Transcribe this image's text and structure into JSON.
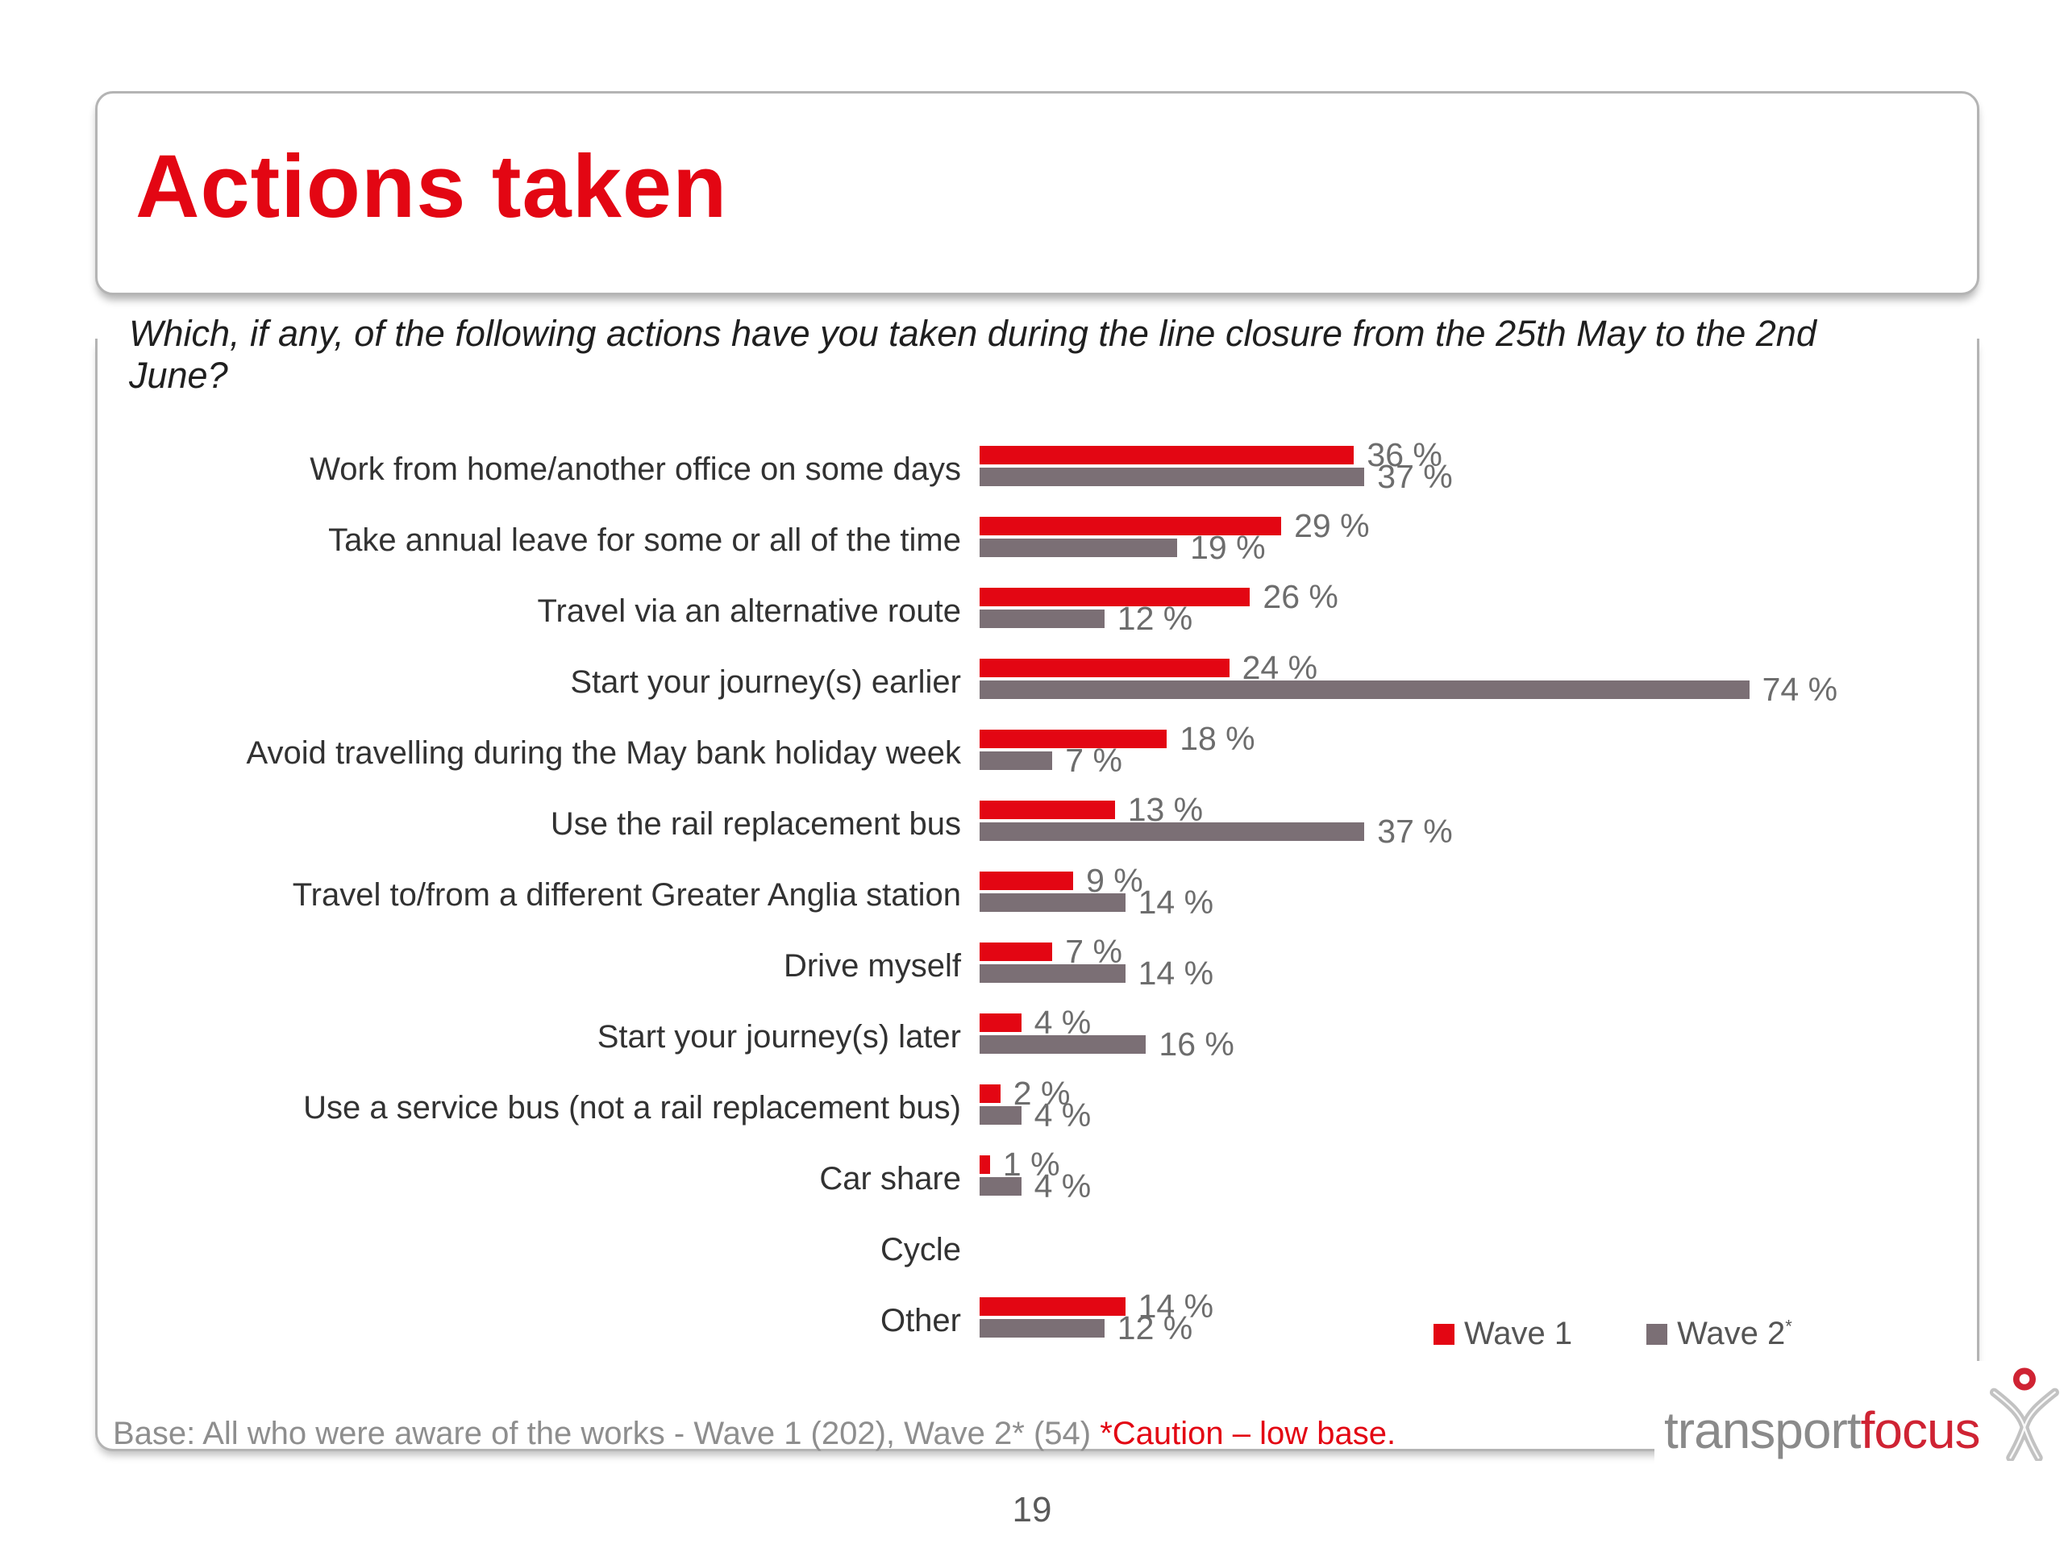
{
  "slide": {
    "title": "Actions taken",
    "question": "Which, if any, of the following actions have you taken during the line closure from the 25th May to the 2nd June?",
    "page_number": "19",
    "footer": {
      "base_text": "Base: All who were aware of the works  - Wave 1 (202), Wave 2* (54) ",
      "caution_text": "*Caution – low base."
    },
    "logo": {
      "part1": "transport",
      "part2": "focus"
    }
  },
  "legend": {
    "items": [
      {
        "label": "Wave 1",
        "sup": "",
        "color": "#e30613"
      },
      {
        "label": "Wave 2",
        "sup": "*",
        "color": "#7b6f75"
      }
    ]
  },
  "colors": {
    "wave1": "#e30613",
    "wave2": "#7b6f75",
    "title_red": "#e30613",
    "caution_red": "#e30613",
    "border_grey": "#b4b4b4",
    "value_label_grey": "#6d6d6d",
    "category_label_grey": "#323232",
    "base_text_grey": "#8e8e8e",
    "logo_grey": "#8a8a8a",
    "logo_red": "#cf2333"
  },
  "chart_data": {
    "type": "bar",
    "orientation": "horizontal",
    "unit": "%",
    "value_label_format": "{v} %",
    "xlim": [
      0,
      80
    ],
    "grid": false,
    "legend_position": "bottom-right",
    "categories": [
      "Work from home/another office on some days",
      "Take annual leave for some or all of the time",
      "Travel via an alternative route",
      "Start your journey(s) earlier",
      "Avoid travelling during the May bank holiday week",
      "Use the rail replacement bus",
      "Travel to/from a different Greater Anglia station",
      "Drive myself",
      "Start your journey(s) later",
      "Use a service bus (not a rail replacement bus)",
      "Car share",
      "Cycle",
      "Other"
    ],
    "series": [
      {
        "name": "Wave 1",
        "color": "#e30613",
        "values": [
          36,
          29,
          26,
          24,
          18,
          13,
          9,
          7,
          4,
          2,
          1,
          null,
          14
        ]
      },
      {
        "name": "Wave 2",
        "color": "#7b6f75",
        "values": [
          37,
          19,
          12,
          74,
          7,
          37,
          14,
          14,
          16,
          4,
          4,
          null,
          12
        ]
      }
    ]
  }
}
